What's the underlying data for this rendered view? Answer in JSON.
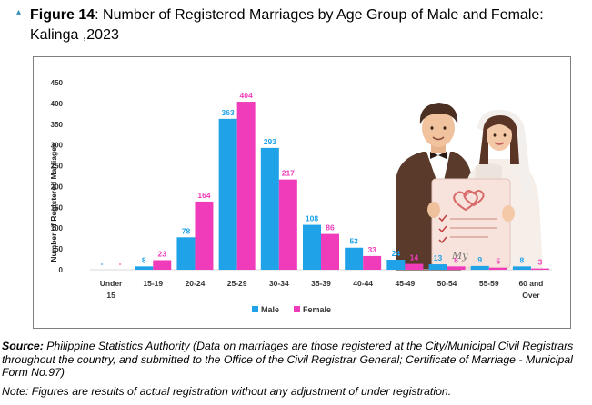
{
  "header": {
    "figure_label": "Figure 14",
    "title_rest": ": Number of Registered Marriages by Age Group of Male and Female: Kalinga ,2023"
  },
  "chart_data": {
    "type": "bar",
    "categories": [
      "Under 15",
      "15-19",
      "20-24",
      "25-29",
      "30-34",
      "35-39",
      "40-44",
      "45-49",
      "50-54",
      "55-59",
      "60 and Over"
    ],
    "series": [
      {
        "name": "Male",
        "color": "#1fa2e8",
        "values": [
          0,
          8,
          78,
          363,
          293,
          108,
          53,
          24,
          13,
          9,
          8
        ],
        "labels": [
          "-",
          "8",
          "78",
          "363",
          "293",
          "108",
          "53",
          "24",
          "13",
          "9",
          "8"
        ]
      },
      {
        "name": "Female",
        "color": "#f03cba",
        "values": [
          0,
          23,
          164,
          404,
          217,
          86,
          33,
          14,
          8,
          5,
          3
        ],
        "labels": [
          "-",
          "23",
          "164",
          "404",
          "217",
          "86",
          "33",
          "14",
          "8",
          "5",
          "3"
        ]
      }
    ],
    "title": "",
    "xlabel": "",
    "ylabel": "Number of Registered Marriages",
    "ylim": [
      0,
      450
    ],
    "yticks": [
      0,
      50,
      100,
      150,
      200,
      250,
      300,
      350,
      400,
      450
    ],
    "grid": false,
    "legend_position": "bottom"
  },
  "footer": {
    "source_label": "Source:",
    "source_text": " Philippine Statistics Authority (Data on marriages are those registered at the City/Municipal Civil Registrars throughout the country, and submitted to the Office of the Civil Registrar General; Certificate of Marriage - Municipal Form No.97)",
    "note": "Note: Figures are results of actual registration without any adjustment of under registration."
  },
  "illustration": {
    "name": "couple-illustration",
    "handwriting": "My"
  }
}
